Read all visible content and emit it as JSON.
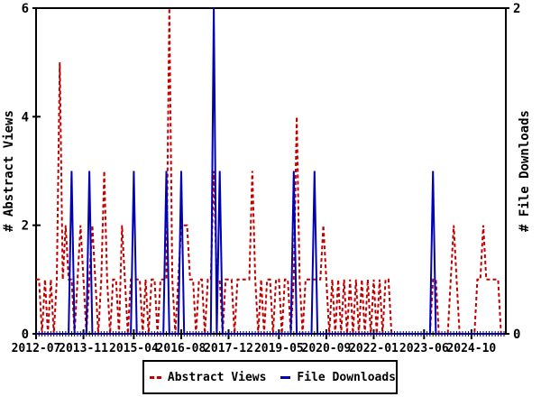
{
  "chart_data": {
    "type": "line",
    "title": "",
    "grid": false,
    "background": "#ffffff",
    "legend_position": "bottom-center",
    "y_left": {
      "label": "# Abstract Views",
      "min": 0,
      "max": 6,
      "ticks": [
        0,
        2,
        4,
        6
      ]
    },
    "y_right": {
      "label": "# File Downloads",
      "min": 0,
      "max": 2,
      "ticks": [
        0,
        2
      ]
    },
    "x_tick_labels": [
      "2012-07",
      "2013-11",
      "2015-04",
      "2016-08",
      "2017-12",
      "2019-05",
      "2020-09",
      "2022-01",
      "2023-06",
      "2024-10"
    ],
    "x": [
      "2012-07",
      "2012-08",
      "2012-09",
      "2012-10",
      "2012-11",
      "2012-12",
      "2013-01",
      "2013-02",
      "2013-03",
      "2013-04",
      "2013-05",
      "2013-06",
      "2013-07",
      "2013-08",
      "2013-09",
      "2013-10",
      "2013-11",
      "2013-12",
      "2014-01",
      "2014-02",
      "2014-03",
      "2014-04",
      "2014-05",
      "2014-06",
      "2014-07",
      "2014-08",
      "2014-09",
      "2014-10",
      "2014-11",
      "2014-12",
      "2015-01",
      "2015-02",
      "2015-03",
      "2015-04",
      "2015-05",
      "2015-06",
      "2015-07",
      "2015-08",
      "2015-09",
      "2015-10",
      "2015-11",
      "2015-12",
      "2016-01",
      "2016-02",
      "2016-03",
      "2016-04",
      "2016-05",
      "2016-06",
      "2016-07",
      "2016-08",
      "2016-09",
      "2016-10",
      "2016-11",
      "2016-12",
      "2017-01",
      "2017-02",
      "2017-03",
      "2017-04",
      "2017-05",
      "2017-06",
      "2017-07",
      "2017-08",
      "2017-09",
      "2017-10",
      "2017-11",
      "2017-12",
      "2018-01",
      "2018-02",
      "2018-03",
      "2018-04",
      "2018-05",
      "2018-06",
      "2018-07",
      "2018-08",
      "2018-09",
      "2018-10",
      "2018-11",
      "2018-12",
      "2019-01",
      "2019-02",
      "2019-03",
      "2019-04",
      "2019-05",
      "2019-06",
      "2019-07",
      "2019-08",
      "2019-09",
      "2019-10",
      "2019-11",
      "2019-12",
      "2020-01",
      "2020-02",
      "2020-03",
      "2020-04",
      "2020-05",
      "2020-06",
      "2020-07",
      "2020-08",
      "2020-09",
      "2020-10",
      "2020-11",
      "2020-12",
      "2021-01",
      "2021-02",
      "2021-03",
      "2021-04",
      "2021-05",
      "2021-06",
      "2021-07",
      "2021-08",
      "2021-09",
      "2021-10",
      "2021-11",
      "2021-12",
      "2022-01",
      "2022-02",
      "2022-03",
      "2022-04",
      "2022-05",
      "2022-06",
      "2022-07",
      "2022-08",
      "2022-09",
      "2022-10",
      "2022-11",
      "2022-12",
      "2023-01",
      "2023-02",
      "2023-03",
      "2023-04",
      "2023-05",
      "2023-06",
      "2023-07",
      "2023-08",
      "2023-09",
      "2023-10",
      "2023-11",
      "2023-12",
      "2024-01",
      "2024-02",
      "2024-03",
      "2024-04",
      "2024-05",
      "2024-06",
      "2024-07",
      "2024-08",
      "2024-09",
      "2024-10",
      "2024-11",
      "2024-12",
      "2025-01",
      "2025-02",
      "2025-03",
      "2025-04",
      "2025-05",
      "2025-06",
      "2025-07",
      "2025-08",
      "2025-09"
    ],
    "series": [
      {
        "name": "Abstract Views",
        "axis": "left",
        "color": "#c00000",
        "style": "dashed",
        "values": [
          1,
          1,
          0,
          1,
          0,
          1,
          0,
          1,
          5,
          1,
          2,
          1,
          1,
          0,
          1,
          2,
          1,
          0,
          1,
          2,
          1,
          0,
          1,
          3,
          1,
          0,
          1,
          1,
          0,
          2,
          1,
          0,
          1,
          1,
          1,
          1,
          0,
          1,
          0,
          1,
          1,
          0,
          1,
          1,
          1,
          6,
          1,
          0,
          1,
          2,
          2,
          2,
          1,
          1,
          0,
          1,
          1,
          0,
          1,
          1,
          3,
          1,
          1,
          0,
          1,
          1,
          1,
          0,
          1,
          1,
          1,
          1,
          1,
          3,
          1,
          0,
          1,
          0,
          1,
          1,
          0,
          1,
          1,
          0,
          1,
          1,
          0,
          1,
          4,
          1,
          0,
          1,
          1,
          1,
          1,
          1,
          1,
          2,
          1,
          0,
          1,
          0,
          1,
          0,
          1,
          0,
          1,
          0,
          1,
          0,
          1,
          0,
          1,
          0,
          1,
          0,
          1,
          0,
          1,
          1,
          0,
          0,
          0,
          0,
          0,
          0,
          0,
          0,
          0,
          0,
          0,
          0,
          0,
          0,
          1,
          1,
          0,
          0,
          0,
          0,
          1,
          2,
          1,
          0,
          0,
          0,
          0,
          0,
          0,
          1,
          1,
          2,
          1,
          1,
          1,
          1,
          1,
          0,
          0
        ]
      },
      {
        "name": "File Downloads",
        "axis": "right",
        "color": "#0000b4",
        "style": "solid",
        "values": [
          0,
          0,
          0,
          0,
          0,
          0,
          0,
          0,
          0,
          0,
          0,
          0,
          1,
          0,
          0,
          0,
          0,
          0,
          1,
          0,
          0,
          0,
          0,
          0,
          0,
          0,
          0,
          0,
          0,
          0,
          0,
          0,
          0,
          1,
          0,
          0,
          0,
          0,
          0,
          0,
          0,
          0,
          0,
          0,
          1,
          0,
          0,
          0,
          0,
          1,
          0,
          0,
          0,
          0,
          0,
          0,
          0,
          0,
          0,
          0,
          2,
          0,
          1,
          0,
          0,
          0,
          0,
          0,
          0,
          0,
          0,
          0,
          0,
          0,
          0,
          0,
          0,
          0,
          0,
          0,
          0,
          0,
          0,
          0,
          0,
          0,
          0,
          1,
          0,
          0,
          0,
          0,
          0,
          0,
          1,
          0,
          0,
          0,
          0,
          0,
          0,
          0,
          0,
          0,
          0,
          0,
          0,
          0,
          0,
          0,
          0,
          0,
          0,
          0,
          0,
          0,
          0,
          0,
          0,
          0,
          0,
          0,
          0,
          0,
          0,
          0,
          0,
          0,
          0,
          0,
          0,
          0,
          0,
          0,
          1,
          0,
          0,
          0,
          0,
          0,
          0,
          0,
          0,
          0,
          0,
          0,
          0,
          0,
          0,
          0,
          0,
          0,
          0,
          0,
          0,
          0,
          0,
          0,
          0
        ]
      }
    ],
    "legend": {
      "abstract_views_label": "Abstract Views",
      "file_downloads_label": "File Downloads"
    }
  }
}
